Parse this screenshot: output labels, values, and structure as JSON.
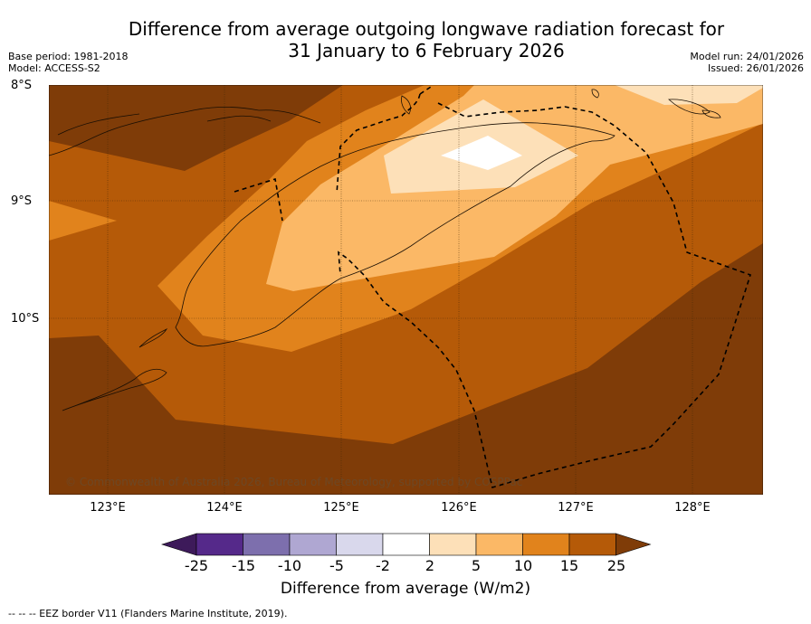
{
  "title": {
    "line1": "Difference from average outgoing longwave radiation forecast for",
    "line2": "31 January to 6 February 2026"
  },
  "meta": {
    "base_period": "Base period: 1981-2018",
    "model": "Model: ACCESS-S2",
    "model_run": "Model run: 24/01/2026",
    "issued": "Issued: 26/01/2026"
  },
  "map": {
    "lat_labels": [
      "8°S",
      "9°S",
      "10°S"
    ],
    "lon_labels": [
      "123°E",
      "124°E",
      "125°E",
      "126°E",
      "127°E",
      "128°E"
    ],
    "copyright": "© Commonwealth of Australia 2026, Bureau of Meteorology, supported by COSPPac",
    "eez_line_label": "EEZ border V11"
  },
  "colorbar": {
    "title": "Difference from average (W/m2)",
    "ticks": [
      "-25",
      "-15",
      "-10",
      "-5",
      "-2",
      "2",
      "5",
      "10",
      "15",
      "25"
    ],
    "colors": [
      "#3d1a5a",
      "#55298a",
      "#7d6fad",
      "#afa7d2",
      "#d9d8ec",
      "#ffffff",
      "#fde0b8",
      "#fbb866",
      "#e1831c",
      "#b55a08",
      "#7f3c08"
    ]
  },
  "footer": {
    "eez_note": "--  --  -- EEZ border V11 (Flanders Marine Institute, 2019)."
  }
}
